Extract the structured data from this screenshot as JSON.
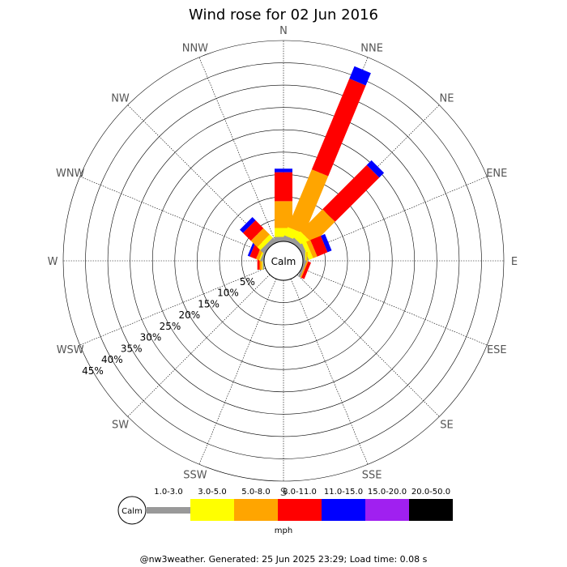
{
  "chart_data": {
    "type": "windrose",
    "title": "Wind rose for 02 Jun 2016",
    "directions": [
      "N",
      "NNE",
      "NE",
      "ENE",
      "E",
      "ESE",
      "SE",
      "SSE",
      "S",
      "SSW",
      "SW",
      "WSW",
      "W",
      "WNW",
      "NW",
      "NNW"
    ],
    "radial_labels": [
      "5%",
      "10%",
      "15%",
      "20%",
      "25%",
      "30%",
      "35%",
      "40%",
      "45%"
    ],
    "radial_max": 45,
    "calm_label": "Calm",
    "grid": true,
    "speed_bins": [
      {
        "label": "1.0-3.0",
        "color": "#999999"
      },
      {
        "label": "3.0-5.0",
        "color": "#ffff00"
      },
      {
        "label": "5.0-8.0",
        "color": "#ffa500"
      },
      {
        "label": "8.0-11.0",
        "color": "#ff0000"
      },
      {
        "label": "11.0-15.0",
        "color": "#0000ff"
      },
      {
        "label": "15.0-20.0",
        "color": "#a020f0"
      },
      {
        "label": "20.0-50.0",
        "color": "#000000"
      }
    ],
    "units": "mph",
    "series": [
      {
        "direction": "N",
        "cumulative": [
          1,
          3,
          9,
          15.5,
          16.3,
          16.3,
          16.3
        ]
      },
      {
        "direction": "NNE",
        "cumulative": [
          1,
          3,
          17,
          39,
          42,
          42,
          42
        ]
      },
      {
        "direction": "NE",
        "cumulative": [
          1,
          3,
          10,
          24,
          25.5,
          25.5,
          25.5
        ]
      },
      {
        "direction": "ENE",
        "cumulative": [
          1,
          2,
          3,
          5.5,
          6.5,
          6.5,
          6.5
        ]
      },
      {
        "direction": "E",
        "cumulative": [
          0.5,
          0.8,
          1,
          1,
          1,
          1,
          1
        ]
      },
      {
        "direction": "ESE",
        "cumulative": [
          0.5,
          0.5,
          0.8,
          1.5,
          1.5,
          1.5,
          1.5
        ]
      },
      {
        "direction": "SE",
        "cumulative": [
          0,
          0,
          0,
          0,
          0,
          0,
          0
        ]
      },
      {
        "direction": "SSE",
        "cumulative": [
          0,
          0,
          0,
          0,
          0,
          0,
          0
        ]
      },
      {
        "direction": "S",
        "cumulative": [
          0,
          0,
          0,
          0,
          0,
          0,
          0
        ]
      },
      {
        "direction": "SSW",
        "cumulative": [
          0,
          0,
          0,
          0,
          0,
          0,
          0
        ]
      },
      {
        "direction": "SW",
        "cumulative": [
          0,
          0,
          0,
          0,
          0,
          0,
          0
        ]
      },
      {
        "direction": "WSW",
        "cumulative": [
          0,
          0,
          0,
          0,
          0,
          0,
          0
        ]
      },
      {
        "direction": "W",
        "cumulative": [
          0.3,
          0.5,
          1,
          1.5,
          1.5,
          1.5,
          1.5
        ]
      },
      {
        "direction": "WNW",
        "cumulative": [
          0.5,
          0.8,
          1.5,
          3,
          3.5,
          3.5,
          3.5
        ]
      },
      {
        "direction": "NW",
        "cumulative": [
          1,
          2,
          4,
          6.5,
          7.5,
          7.5,
          7.5
        ]
      },
      {
        "direction": "NNW",
        "cumulative": [
          0.5,
          0.5,
          0.5,
          0.5,
          0.5,
          0.5,
          0.5
        ]
      }
    ]
  },
  "footer": "@nw3weather. Generated: 25 Jun 2025 23:29; Load time: 0.08 s"
}
